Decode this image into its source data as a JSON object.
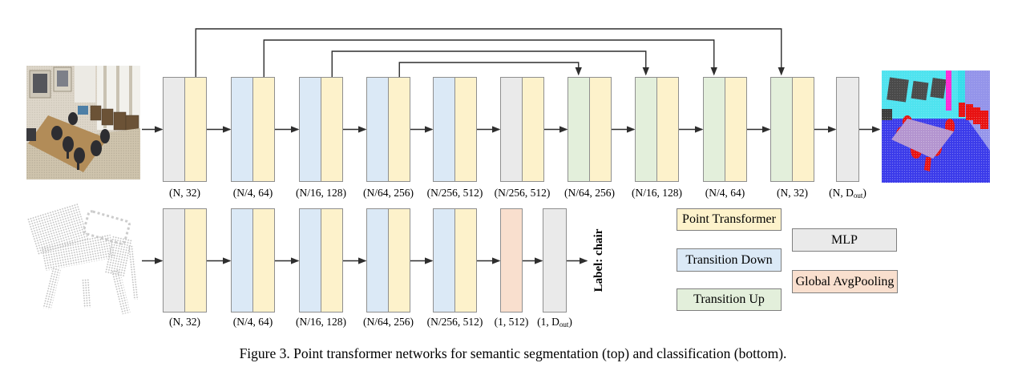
{
  "figure": {
    "caption": "Figure 3. Point transformer networks for semantic segmentation (top) and classification (bottom)."
  },
  "colors": {
    "point_transformer": "#fdf2cb",
    "transition_down": "#dbe9f6",
    "transition_up": "#e3efdb",
    "mlp": "#eaeaea",
    "global_avgpooling": "#f9dfce",
    "block_border": "#8f8f8f",
    "arrow": "#2e2e2e"
  },
  "top_row": {
    "name": "semantic segmentation network",
    "input_image": "conference-room-point-cloud",
    "output_image": "segmented-room-point-cloud",
    "blocks": [
      {
        "cells": [
          "mlp",
          "point_transformer"
        ],
        "label": "(N, 32)"
      },
      {
        "cells": [
          "transition_down",
          "point_transformer"
        ],
        "label": "(N/4, 64)"
      },
      {
        "cells": [
          "transition_down",
          "point_transformer"
        ],
        "label": "(N/16, 128)"
      },
      {
        "cells": [
          "transition_down",
          "point_transformer"
        ],
        "label": "(N/64, 256)"
      },
      {
        "cells": [
          "transition_down",
          "point_transformer"
        ],
        "label": "(N/256, 512)"
      },
      {
        "cells": [
          "mlp",
          "point_transformer"
        ],
        "label": "(N/256, 512)"
      },
      {
        "cells": [
          "transition_up",
          "point_transformer"
        ],
        "label": "(N/64, 256)"
      },
      {
        "cells": [
          "transition_up",
          "point_transformer"
        ],
        "label": "(N/16, 128)"
      },
      {
        "cells": [
          "transition_up",
          "point_transformer"
        ],
        "label": "(N/4, 64)"
      },
      {
        "cells": [
          "transition_up",
          "point_transformer"
        ],
        "label": "(N, 32)"
      },
      {
        "cells": [
          "mlp"
        ],
        "label_pre": "(N, D",
        "label_sub": "out",
        "label_post": ")"
      }
    ],
    "skip_connections": [
      [
        0,
        9
      ],
      [
        1,
        8
      ],
      [
        2,
        7
      ],
      [
        3,
        6
      ]
    ]
  },
  "bottom_row": {
    "name": "classification network",
    "input_image": "chair-point-cloud",
    "output_label": "Label: chair",
    "blocks": [
      {
        "cells": [
          "mlp",
          "point_transformer"
        ],
        "label": "(N, 32)"
      },
      {
        "cells": [
          "transition_down",
          "point_transformer"
        ],
        "label": "(N/4, 64)"
      },
      {
        "cells": [
          "transition_down",
          "point_transformer"
        ],
        "label": "(N/16, 128)"
      },
      {
        "cells": [
          "transition_down",
          "point_transformer"
        ],
        "label": "(N/64, 256)"
      },
      {
        "cells": [
          "transition_down",
          "point_transformer"
        ],
        "label": "(N/256, 512)"
      },
      {
        "cells": [
          "global_avgpooling"
        ],
        "label": "(1, 512)"
      },
      {
        "cells": [
          "mlp"
        ],
        "label_pre": "(1, D",
        "label_sub": "out",
        "label_post": ")"
      }
    ]
  },
  "legend": [
    {
      "label": "Point Transformer",
      "color_key": "point_transformer"
    },
    {
      "label": "Transition Down",
      "color_key": "transition_down"
    },
    {
      "label": "Transition Up",
      "color_key": "transition_up"
    },
    {
      "label": "MLP",
      "color_key": "mlp"
    },
    {
      "label": "Global AvgPooling",
      "color_key": "global_avgpooling"
    }
  ]
}
